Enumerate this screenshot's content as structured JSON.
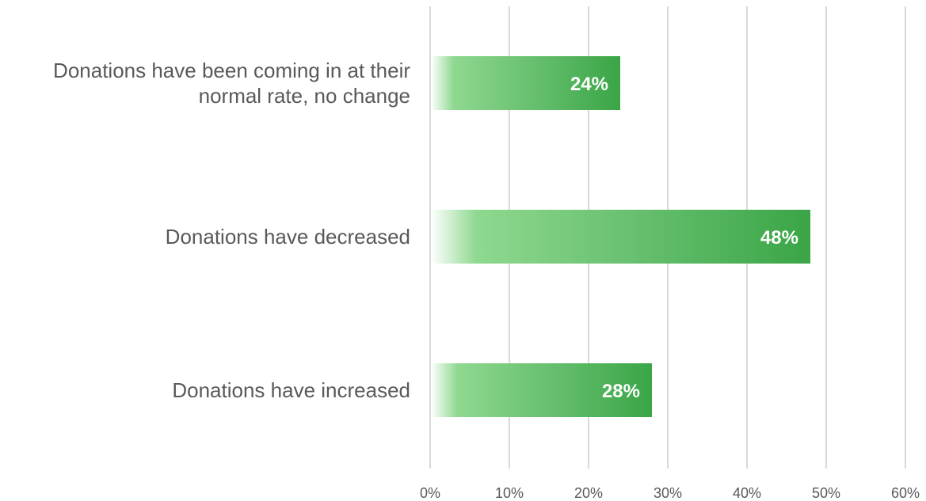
{
  "chart_data": {
    "type": "bar",
    "orientation": "horizontal",
    "categories": [
      [
        "Donations have been coming in at their",
        "normal rate, no change"
      ],
      [
        "Donations have decreased"
      ],
      [
        "Donations have increased"
      ]
    ],
    "values": [
      24,
      48,
      28
    ],
    "data_labels": [
      "24%",
      "48%",
      "28%"
    ],
    "xlim": [
      0,
      60
    ],
    "x_ticks": [
      0,
      10,
      20,
      30,
      40,
      50,
      60
    ],
    "x_tick_labels": [
      "0%",
      "10%",
      "20%",
      "30%",
      "40%",
      "50%",
      "60%"
    ],
    "grid": "vertical",
    "bar_color": "#3aa546",
    "bar_fill": "gradient"
  }
}
